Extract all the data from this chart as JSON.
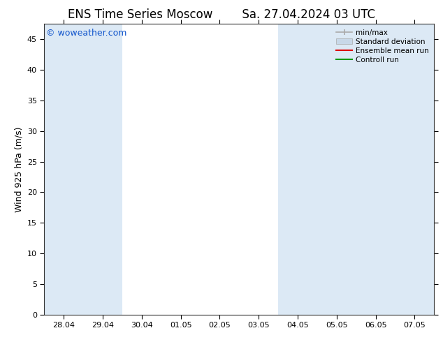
{
  "title": "ENS Time Series Moscow",
  "subtitle": "Sa. 27.04.2024 03 UTC",
  "ylabel": "Wind 925 hPa (m/s)",
  "watermark": "© woweather.com",
  "ylim": [
    0,
    47.5
  ],
  "yticks": [
    0,
    5,
    10,
    15,
    20,
    25,
    30,
    35,
    40,
    45
  ],
  "xtick_labels": [
    "28.04",
    "29.04",
    "30.04",
    "01.05",
    "02.05",
    "03.05",
    "04.05",
    "05.05",
    "06.05",
    "07.05"
  ],
  "bg_color": "#ffffff",
  "plot_bg_color": "#ffffff",
  "blue_columns": [
    0,
    1,
    6,
    7,
    8,
    9
  ],
  "blue_col_color": "#dce9f5",
  "legend": {
    "min_max": {
      "label": "min/max",
      "color": "#aaaaaa"
    },
    "std_dev": {
      "label": "Standard deviation",
      "color": "#c8d8e8"
    },
    "ensemble_mean": {
      "label": "Ensemble mean run",
      "color": "#dd0000"
    },
    "control": {
      "label": "Controll run",
      "color": "#009900"
    }
  },
  "title_fontsize": 12,
  "tick_fontsize": 8,
  "label_fontsize": 9,
  "watermark_color": "#1155cc",
  "watermark_fontsize": 9
}
